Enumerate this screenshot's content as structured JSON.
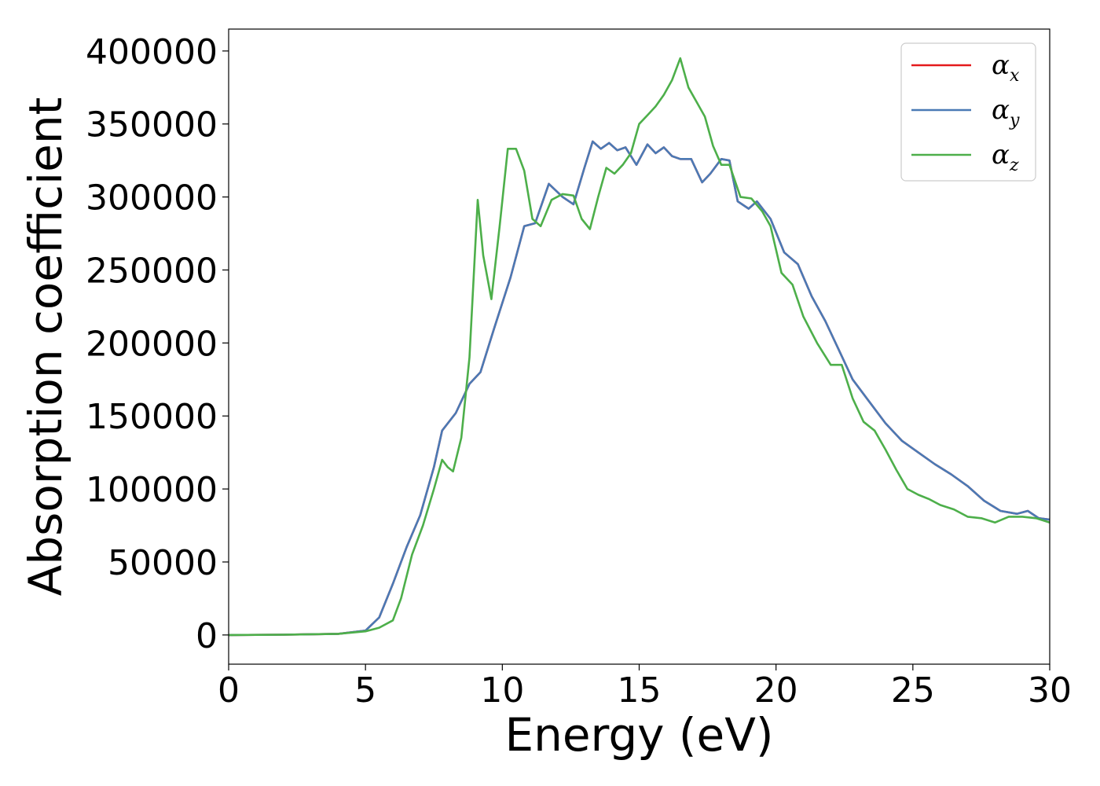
{
  "chart_data": {
    "type": "line",
    "title": "",
    "xlabel": "Energy (eV)",
    "ylabel": "Absorption coefficient",
    "xlim": [
      0,
      30
    ],
    "ylim": [
      -20000,
      415000
    ],
    "xticks": [
      0,
      5,
      10,
      15,
      20,
      25,
      30
    ],
    "xtick_labels": [
      "0",
      "5",
      "10",
      "15",
      "20",
      "25",
      "30"
    ],
    "yticks": [
      0,
      50000,
      100000,
      150000,
      200000,
      250000,
      300000,
      350000,
      400000
    ],
    "ytick_labels": [
      "0",
      "50000",
      "100000",
      "150000",
      "200000",
      "250000",
      "300000",
      "350000",
      "400000"
    ],
    "grid": false,
    "legend_position": "top-right",
    "series": [
      {
        "name": "αx",
        "legend_symbol": "α",
        "legend_sub": "x",
        "color": "#e41a1c",
        "x": [
          0,
          2,
          4,
          5,
          5.5,
          6,
          6.5,
          7,
          7.5,
          7.8,
          8.3,
          8.8,
          9.2,
          9.7,
          10.3,
          10.8,
          11.2,
          11.7,
          12.2,
          12.6,
          13.0,
          13.3,
          13.6,
          13.9,
          14.2,
          14.5,
          14.9,
          15.3,
          15.6,
          15.9,
          16.2,
          16.5,
          16.9,
          17.3,
          17.6,
          18.0,
          18.3,
          18.6,
          19.0,
          19.3,
          19.8,
          20.3,
          20.8,
          21.3,
          21.8,
          22.3,
          22.8,
          23.4,
          24.0,
          24.6,
          25.2,
          25.8,
          26.4,
          27.0,
          27.6,
          28.2,
          28.8,
          29.2,
          29.6,
          30.0
        ],
        "y": [
          0,
          200,
          800,
          3000,
          12000,
          35000,
          60000,
          82000,
          115000,
          140000,
          152000,
          172000,
          180000,
          210000,
          245000,
          280000,
          282000,
          309000,
          300000,
          295000,
          320000,
          338000,
          333000,
          337000,
          332000,
          334000,
          322000,
          336000,
          330000,
          334000,
          328000,
          326000,
          326000,
          310000,
          316000,
          326000,
          325000,
          297000,
          292000,
          297000,
          285000,
          262000,
          254000,
          232000,
          215000,
          195000,
          175000,
          160000,
          145000,
          133000,
          125000,
          117000,
          110000,
          102000,
          92000,
          85000,
          83000,
          85000,
          80000,
          79000
        ]
      },
      {
        "name": "αy",
        "legend_symbol": "α",
        "legend_sub": "y",
        "color": "#4a7ab5",
        "x": [
          0,
          2,
          4,
          5,
          5.5,
          6,
          6.5,
          7,
          7.5,
          7.8,
          8.3,
          8.8,
          9.2,
          9.7,
          10.3,
          10.8,
          11.2,
          11.7,
          12.2,
          12.6,
          13.0,
          13.3,
          13.6,
          13.9,
          14.2,
          14.5,
          14.9,
          15.3,
          15.6,
          15.9,
          16.2,
          16.5,
          16.9,
          17.3,
          17.6,
          18.0,
          18.3,
          18.6,
          19.0,
          19.3,
          19.8,
          20.3,
          20.8,
          21.3,
          21.8,
          22.3,
          22.8,
          23.4,
          24.0,
          24.6,
          25.2,
          25.8,
          26.4,
          27.0,
          27.6,
          28.2,
          28.8,
          29.2,
          29.6,
          30.0
        ],
        "y": [
          0,
          200,
          800,
          3000,
          12000,
          35000,
          60000,
          82000,
          115000,
          140000,
          152000,
          172000,
          180000,
          210000,
          245000,
          280000,
          282000,
          309000,
          300000,
          295000,
          320000,
          338000,
          333000,
          337000,
          332000,
          334000,
          322000,
          336000,
          330000,
          334000,
          328000,
          326000,
          326000,
          310000,
          316000,
          326000,
          325000,
          297000,
          292000,
          297000,
          285000,
          262000,
          254000,
          232000,
          215000,
          195000,
          175000,
          160000,
          145000,
          133000,
          125000,
          117000,
          110000,
          102000,
          92000,
          85000,
          83000,
          85000,
          80000,
          79000
        ]
      },
      {
        "name": "αz",
        "legend_symbol": "α",
        "legend_sub": "z",
        "color": "#4daf4a",
        "x": [
          0,
          2,
          4,
          5,
          5.5,
          6,
          6.3,
          6.7,
          7.1,
          7.5,
          7.8,
          8.0,
          8.2,
          8.5,
          8.8,
          9.1,
          9.3,
          9.6,
          9.9,
          10.2,
          10.5,
          10.8,
          11.1,
          11.4,
          11.8,
          12.2,
          12.6,
          12.9,
          13.2,
          13.5,
          13.8,
          14.1,
          14.4,
          14.7,
          15.0,
          15.3,
          15.6,
          15.9,
          16.2,
          16.5,
          16.8,
          17.1,
          17.4,
          17.7,
          18.0,
          18.3,
          18.7,
          19.1,
          19.5,
          19.8,
          20.2,
          20.6,
          21.0,
          21.5,
          22.0,
          22.4,
          22.8,
          23.2,
          23.6,
          24.0,
          24.4,
          24.8,
          25.2,
          25.6,
          26.0,
          26.5,
          27.0,
          27.5,
          28.0,
          28.5,
          29.0,
          29.5,
          30.0
        ],
        "y": [
          0,
          200,
          800,
          2500,
          5000,
          10000,
          25000,
          55000,
          75000,
          100000,
          120000,
          115000,
          112000,
          135000,
          190000,
          298000,
          260000,
          230000,
          280000,
          333000,
          333000,
          318000,
          285000,
          280000,
          298000,
          302000,
          301000,
          285000,
          278000,
          300000,
          320000,
          316000,
          322000,
          330000,
          350000,
          356000,
          362000,
          370000,
          380000,
          395000,
          375000,
          365000,
          355000,
          335000,
          322000,
          322000,
          300000,
          299000,
          290000,
          280000,
          248000,
          240000,
          218000,
          200000,
          185000,
          185000,
          162000,
          146000,
          140000,
          127000,
          113000,
          100000,
          96000,
          93000,
          89000,
          86000,
          81000,
          80000,
          77000,
          81000,
          81000,
          80000,
          77000
        ]
      }
    ]
  }
}
